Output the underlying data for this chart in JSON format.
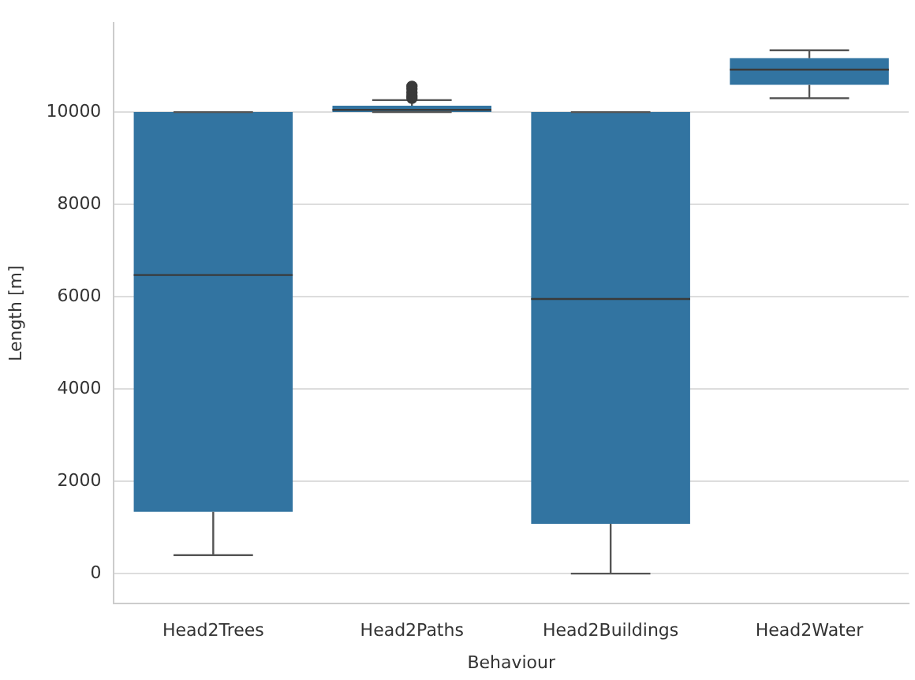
{
  "chart_data": {
    "type": "box",
    "xlabel": "Behaviour",
    "ylabel": "Length [m]",
    "categories": [
      "Head2Trees",
      "Head2Paths",
      "Head2Buildings",
      "Head2Water"
    ],
    "color": "#3274a1",
    "boxes": [
      {
        "low": 400,
        "q1": 1340,
        "median": 6470,
        "q3": 10000,
        "high": 10000
      },
      {
        "low": 10000,
        "q1": 10000,
        "median": 10050,
        "q3": 10140,
        "high": 10260,
        "outliers": [
          10300,
          10350,
          10420,
          10500,
          10560
        ]
      },
      {
        "low": 0,
        "q1": 1080,
        "median": 5950,
        "q3": 10000,
        "high": 10000
      },
      {
        "low": 10300,
        "q1": 10590,
        "median": 10920,
        "q3": 11170,
        "high": 11340
      }
    ],
    "ylim": [
      -650,
      11930
    ],
    "yticks": [
      0,
      2000,
      4000,
      6000,
      8000,
      10000
    ],
    "grid": "y"
  }
}
